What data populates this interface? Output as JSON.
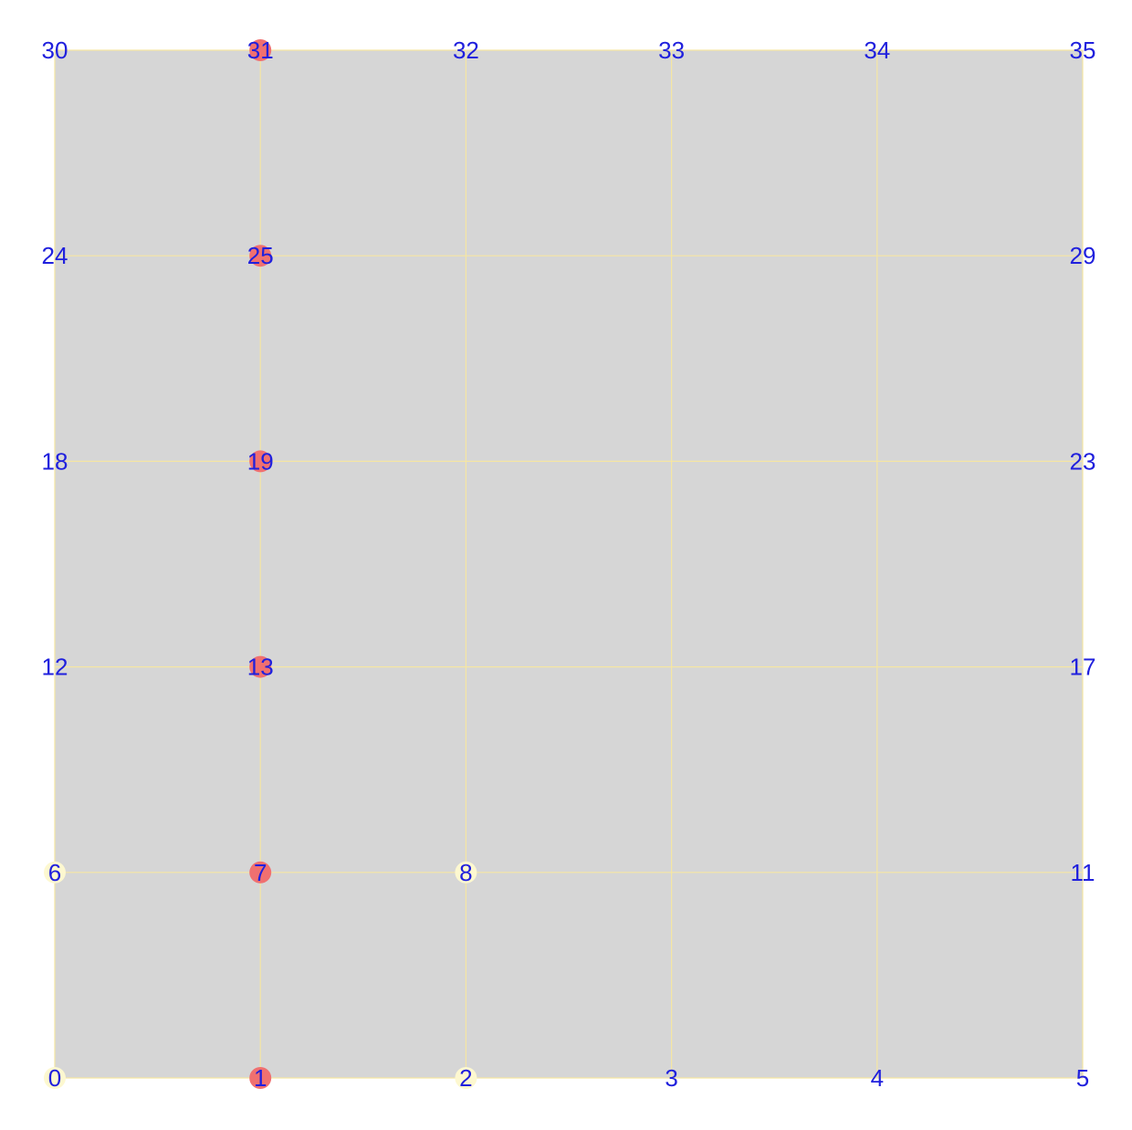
{
  "chart_data": {
    "type": "grid-graph",
    "grid": {
      "columns": 6,
      "rows": 6
    },
    "nodes": [
      {
        "id": "0",
        "col": 0,
        "row": 0,
        "state": "empty"
      },
      {
        "id": "1",
        "col": 1,
        "row": 0,
        "state": "active"
      },
      {
        "id": "2",
        "col": 2,
        "row": 0,
        "state": "empty"
      },
      {
        "id": "3",
        "col": 3,
        "row": 0,
        "state": "plain"
      },
      {
        "id": "4",
        "col": 4,
        "row": 0,
        "state": "plain"
      },
      {
        "id": "5",
        "col": 5,
        "row": 0,
        "state": "plain"
      },
      {
        "id": "6",
        "col": 0,
        "row": 1,
        "state": "empty"
      },
      {
        "id": "7",
        "col": 1,
        "row": 1,
        "state": "active"
      },
      {
        "id": "8",
        "col": 2,
        "row": 1,
        "state": "empty"
      },
      {
        "id": "11",
        "col": 5,
        "row": 1,
        "state": "plain"
      },
      {
        "id": "12",
        "col": 0,
        "row": 2,
        "state": "plain"
      },
      {
        "id": "13",
        "col": 1,
        "row": 2,
        "state": "active"
      },
      {
        "id": "17",
        "col": 5,
        "row": 2,
        "state": "plain"
      },
      {
        "id": "18",
        "col": 0,
        "row": 3,
        "state": "plain"
      },
      {
        "id": "19",
        "col": 1,
        "row": 3,
        "state": "active"
      },
      {
        "id": "23",
        "col": 5,
        "row": 3,
        "state": "plain"
      },
      {
        "id": "24",
        "col": 0,
        "row": 4,
        "state": "plain"
      },
      {
        "id": "25",
        "col": 1,
        "row": 4,
        "state": "active"
      },
      {
        "id": "29",
        "col": 5,
        "row": 4,
        "state": "plain"
      },
      {
        "id": "30",
        "col": 0,
        "row": 5,
        "state": "plain"
      },
      {
        "id": "31",
        "col": 1,
        "row": 5,
        "state": "active"
      },
      {
        "id": "32",
        "col": 2,
        "row": 5,
        "state": "plain"
      },
      {
        "id": "33",
        "col": 3,
        "row": 5,
        "state": "plain"
      },
      {
        "id": "34",
        "col": 4,
        "row": 5,
        "state": "plain"
      },
      {
        "id": "35",
        "col": 5,
        "row": 5,
        "state": "plain"
      }
    ],
    "edges": [
      [
        "0",
        "1"
      ],
      [
        "1",
        "2"
      ],
      [
        "2",
        "3"
      ],
      [
        "3",
        "4"
      ],
      [
        "4",
        "5"
      ],
      [
        "6",
        "7"
      ],
      [
        "7",
        "8"
      ],
      [
        "8",
        "11"
      ],
      [
        "12",
        "13"
      ],
      [
        "13",
        "17"
      ],
      [
        "18",
        "19"
      ],
      [
        "19",
        "23"
      ],
      [
        "24",
        "25"
      ],
      [
        "25",
        "29"
      ],
      [
        "30",
        "31"
      ],
      [
        "31",
        "32"
      ],
      [
        "32",
        "33"
      ],
      [
        "33",
        "34"
      ],
      [
        "34",
        "35"
      ],
      [
        "0",
        "6"
      ],
      [
        "6",
        "12"
      ],
      [
        "12",
        "18"
      ],
      [
        "18",
        "24"
      ],
      [
        "24",
        "30"
      ],
      [
        "1",
        "7"
      ],
      [
        "7",
        "13"
      ],
      [
        "13",
        "19"
      ],
      [
        "19",
        "25"
      ],
      [
        "25",
        "31"
      ],
      [
        "2",
        "8"
      ],
      [
        "8",
        "32"
      ],
      [
        "3",
        "33"
      ],
      [
        "4",
        "34"
      ],
      [
        "5",
        "11"
      ],
      [
        "11",
        "17"
      ],
      [
        "17",
        "23"
      ],
      [
        "23",
        "29"
      ],
      [
        "29",
        "35"
      ]
    ]
  },
  "colors": {
    "background": "#ffffff",
    "area_fill": "#d6d6d6",
    "edge": "#f5e6a3",
    "label": "#2020dd",
    "node_active": "#f07070",
    "node_empty": "#fdf8d0"
  }
}
